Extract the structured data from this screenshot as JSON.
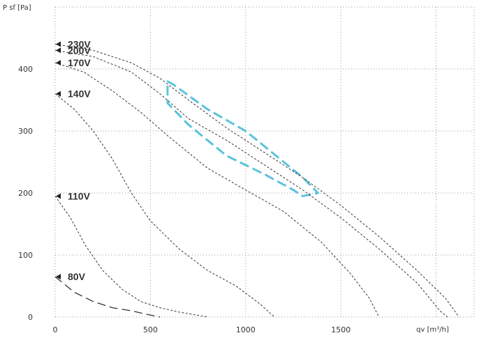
{
  "chart_data": {
    "type": "line",
    "title": "",
    "xlabel": "qv [m³/h]",
    "ylabel": "P sf [Pa]",
    "xlim": [
      0,
      2200
    ],
    "ylim": [
      0,
      500
    ],
    "x_ticks": [
      0,
      500,
      1000,
      1500
    ],
    "y_ticks": [
      0,
      100,
      200,
      300,
      400
    ],
    "grid": true,
    "colors": {
      "curve": "#333333",
      "zone": "#5bc3dc",
      "grid": "#9a9a9a"
    },
    "series": [
      {
        "name": "230V",
        "style": "dotted",
        "label_y": 440,
        "points": [
          [
            0,
            440
          ],
          [
            200,
            430
          ],
          [
            400,
            410
          ],
          [
            550,
            385
          ],
          [
            700,
            350
          ],
          [
            900,
            305
          ],
          [
            1100,
            265
          ],
          [
            1300,
            225
          ],
          [
            1500,
            180
          ],
          [
            1700,
            130
          ],
          [
            1900,
            75
          ],
          [
            2050,
            30
          ],
          [
            2120,
            0
          ]
        ]
      },
      {
        "name": "200V",
        "style": "dotted",
        "label_y": 430,
        "points": [
          [
            0,
            430
          ],
          [
            200,
            420
          ],
          [
            400,
            395
          ],
          [
            550,
            360
          ],
          [
            700,
            320
          ],
          [
            900,
            285
          ],
          [
            1100,
            245
          ],
          [
            1300,
            205
          ],
          [
            1500,
            160
          ],
          [
            1700,
            110
          ],
          [
            1900,
            55
          ],
          [
            2020,
            10
          ],
          [
            2060,
            0
          ]
        ]
      },
      {
        "name": "170V",
        "style": "dotted",
        "label_y": 410,
        "points": [
          [
            0,
            410
          ],
          [
            150,
            395
          ],
          [
            300,
            365
          ],
          [
            450,
            330
          ],
          [
            600,
            290
          ],
          [
            800,
            240
          ],
          [
            1000,
            205
          ],
          [
            1200,
            170
          ],
          [
            1400,
            120
          ],
          [
            1550,
            70
          ],
          [
            1650,
            30
          ],
          [
            1700,
            0
          ]
        ]
      },
      {
        "name": "140V",
        "style": "dotted",
        "label_y": 360,
        "points": [
          [
            0,
            360
          ],
          [
            100,
            335
          ],
          [
            200,
            300
          ],
          [
            300,
            255
          ],
          [
            400,
            200
          ],
          [
            500,
            155
          ],
          [
            650,
            110
          ],
          [
            800,
            75
          ],
          [
            950,
            50
          ],
          [
            1080,
            20
          ],
          [
            1150,
            0
          ]
        ]
      },
      {
        "name": "110V",
        "style": "dotted",
        "label_y": 195,
        "points": [
          [
            0,
            195
          ],
          [
            80,
            160
          ],
          [
            160,
            115
          ],
          [
            250,
            75
          ],
          [
            350,
            45
          ],
          [
            450,
            25
          ],
          [
            550,
            15
          ],
          [
            650,
            8
          ],
          [
            800,
            0
          ]
        ]
      },
      {
        "name": "80V",
        "style": "dashed",
        "label_y": 65,
        "points": [
          [
            0,
            65
          ],
          [
            100,
            40
          ],
          [
            200,
            25
          ],
          [
            300,
            15
          ],
          [
            400,
            10
          ],
          [
            500,
            3
          ],
          [
            550,
            0
          ]
        ]
      }
    ],
    "operating_zone": [
      [
        590,
        380
      ],
      [
        620,
        375
      ],
      [
        800,
        335
      ],
      [
        1000,
        300
      ],
      [
        1200,
        250
      ],
      [
        1300,
        225
      ],
      [
        1380,
        200
      ],
      [
        1300,
        195
      ],
      [
        1250,
        205
      ],
      [
        1100,
        230
      ],
      [
        900,
        260
      ],
      [
        700,
        310
      ],
      [
        590,
        345
      ]
    ]
  }
}
